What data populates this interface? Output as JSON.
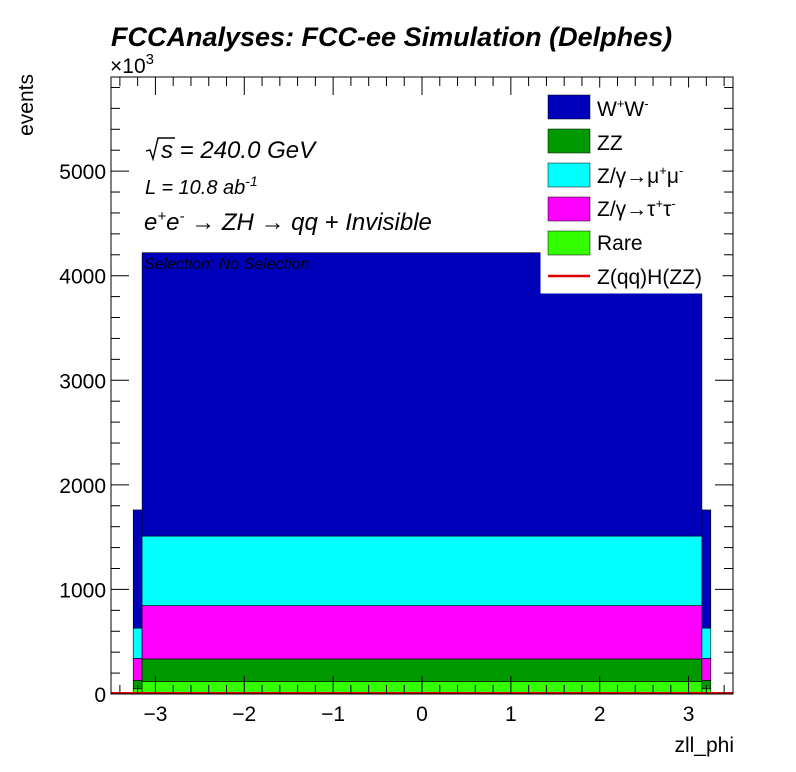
{
  "chart_data": {
    "type": "bar",
    "title": "FCCAnalyses: FCC-ee Simulation (Delphes)",
    "xlabel": "zll_phi",
    "ylabel": "events",
    "y_exponent_label": "×10",
    "y_exponent_power": "3",
    "xlim": [
      -3.5,
      3.5
    ],
    "ylim": [
      0,
      5900
    ],
    "x_ticks": [
      -3,
      -2,
      -1,
      0,
      1,
      2,
      3
    ],
    "x_tick_labels": [
      "−3",
      "−2",
      "−1",
      "0",
      "1",
      "2",
      "3"
    ],
    "y_ticks": [
      0,
      1000,
      2000,
      3000,
      4000,
      5000
    ],
    "y_tick_labels": [
      "0",
      "1000",
      "2000",
      "3000",
      "4000",
      "5000"
    ],
    "stacked": true,
    "bins": [
      {
        "x0": -3.25,
        "x1": -3.15
      },
      {
        "x0": -3.15,
        "x1": 3.15
      },
      {
        "x0": 3.15,
        "x1": 3.25
      }
    ],
    "series": [
      {
        "name": "Rare",
        "label_main": "Rare",
        "color": "#33ff00",
        "values": [
          50,
          120,
          50
        ]
      },
      {
        "name": "ZZ",
        "label_main": "ZZ",
        "color": "#009900",
        "values": [
          80,
          215,
          80
        ]
      },
      {
        "name": "Z/γ→τ⁺τ⁻",
        "label_main": "Z/γ→τ",
        "label_sup1": "+",
        "label_mid": "τ",
        "label_sup2": "-",
        "color": "#ff00ff",
        "values": [
          210,
          510,
          210
        ]
      },
      {
        "name": "Z/γ→μ⁺μ⁻",
        "label_main": "Z/γ→μ",
        "label_sup1": "+",
        "label_mid": "μ",
        "label_sup2": "-",
        "color": "#00ffff",
        "values": [
          290,
          665,
          290
        ]
      },
      {
        "name": "W⁺W⁻",
        "label_main": "W",
        "label_sup1": "+",
        "label_mid": "W",
        "label_sup2": "-",
        "color": "#0000bb",
        "values": [
          1130,
          2710,
          1130
        ]
      }
    ],
    "signal": {
      "name": "Z(qq)H(ZZ)",
      "color": "#dd0000",
      "value": 0
    },
    "legend_order": [
      "W⁺W⁻",
      "ZZ",
      "Z/γ→μ⁺μ⁻",
      "Z/γ→τ⁺τ⁻",
      "Rare",
      "Z(qq)H(ZZ)"
    ],
    "legend_position": "top-right",
    "annotations": {
      "sqrt_s": "s = 240.0 GeV",
      "lumi": "L = 10.8 ab",
      "lumi_sup": "-1",
      "process_e": "e",
      "process_sup1": "+",
      "process_e2": "e",
      "process_sup2": "-",
      "process_rest": " → ZH  → qq + Invisible",
      "selection": "Selection: No Selection"
    }
  }
}
